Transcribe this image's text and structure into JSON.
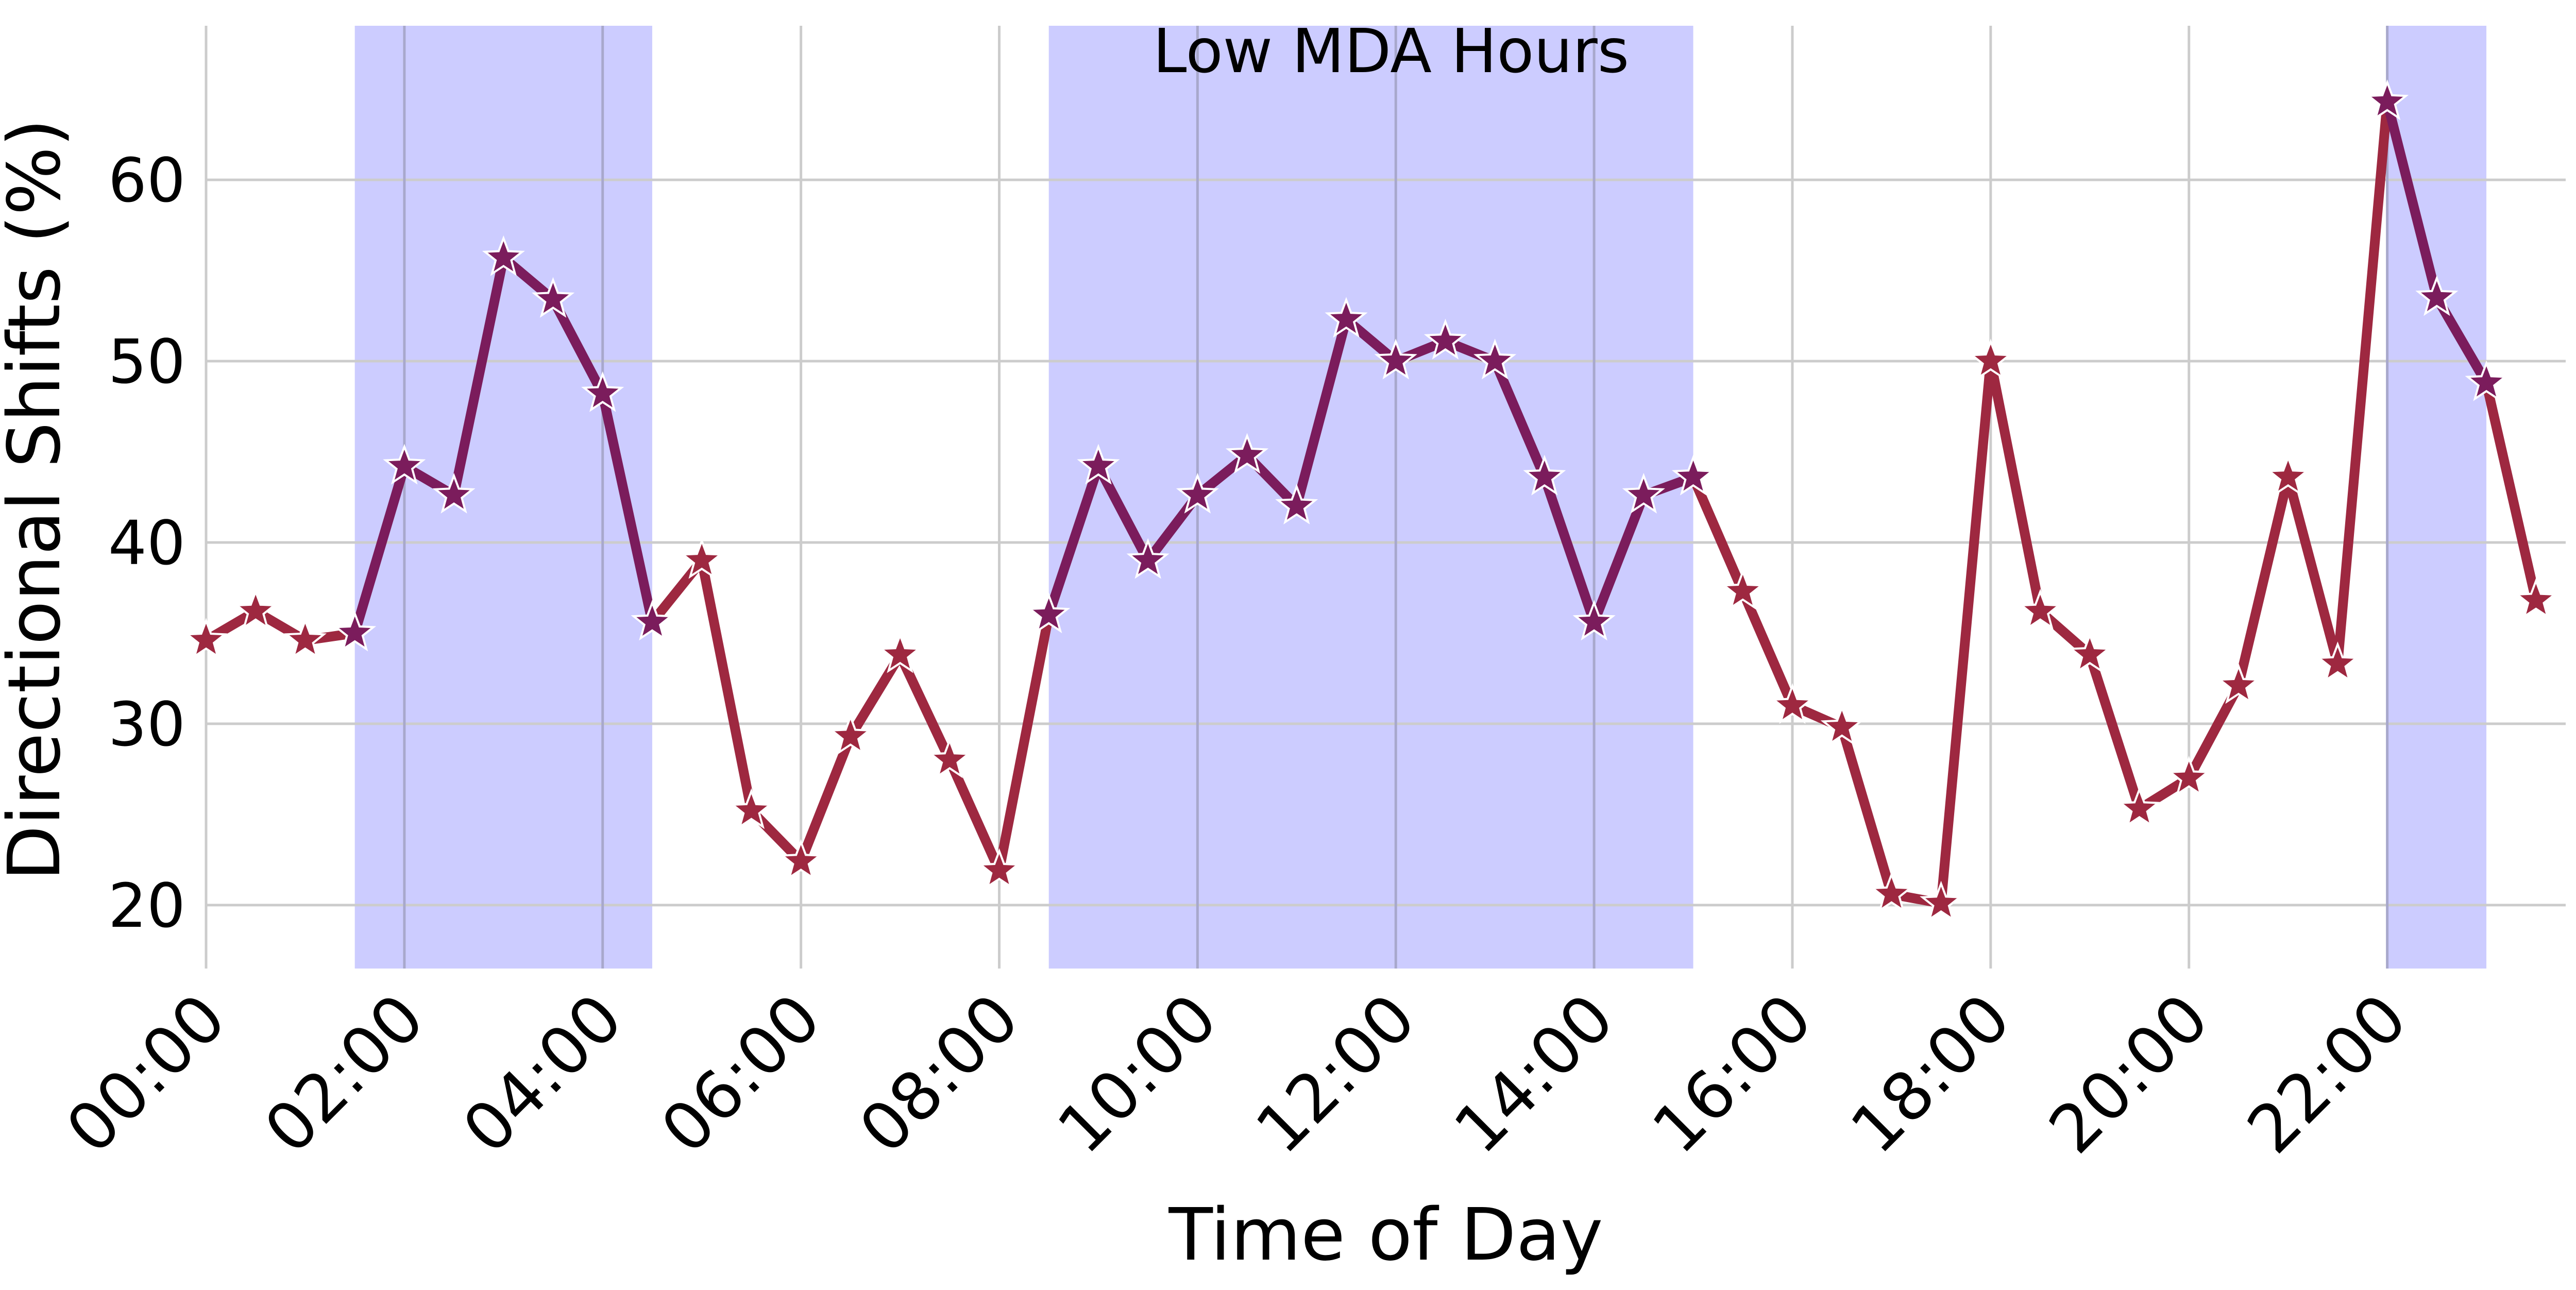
{
  "chart_data": {
    "type": "line",
    "title": "",
    "xlabel": "Time of Day",
    "ylabel": "Directional Shifts (%)",
    "annotation": "Low MDA Hours",
    "xlim": [
      0,
      23.8
    ],
    "ylim": [
      16.5,
      68.5
    ],
    "grid": true,
    "x_ticks": [
      0,
      2,
      4,
      6,
      8,
      10,
      12,
      14,
      16,
      18,
      20,
      22
    ],
    "x_tick_labels": [
      "00:00",
      "02:00",
      "04:00",
      "06:00",
      "08:00",
      "10:00",
      "12:00",
      "14:00",
      "16:00",
      "18:00",
      "20:00",
      "22:00"
    ],
    "y_ticks": [
      20,
      30,
      40,
      50,
      60
    ],
    "y_tick_labels": [
      "20",
      "30",
      "40",
      "50",
      "60"
    ],
    "shaded_ranges": [
      [
        1.5,
        4.5
      ],
      [
        8.5,
        15.0
      ],
      [
        22.0,
        23.0
      ]
    ],
    "x": [
      0,
      0.5,
      1,
      1.5,
      2,
      2.5,
      3,
      3.5,
      4,
      4.5,
      5,
      5.5,
      6,
      6.5,
      7,
      7.5,
      8,
      8.5,
      9,
      9.5,
      10,
      10.5,
      11,
      11.5,
      12,
      12.5,
      13,
      13.5,
      14,
      14.5,
      15,
      15.5,
      16,
      16.5,
      17,
      17.5,
      18,
      18.5,
      19,
      19.5,
      20,
      20.5,
      21,
      21.5,
      22,
      22.5,
      23,
      23.5
    ],
    "series": [
      {
        "values": [
          34.6,
          36.2,
          34.6,
          35.0,
          44.2,
          42.6,
          55.7,
          53.4,
          48.2,
          35.6,
          39.0,
          25.2,
          22.4,
          29.3,
          33.8,
          28.0,
          21.9,
          36.0,
          44.2,
          39.0,
          42.6,
          44.8,
          42.0,
          52.3,
          50.0,
          51.1,
          50.0,
          43.6,
          35.6,
          42.6,
          43.6,
          37.3,
          31.0,
          29.8,
          20.6,
          20.1,
          50.0,
          36.2,
          33.8,
          25.3,
          27.0,
          32.1,
          43.6,
          33.3,
          64.3,
          53.5,
          48.8,
          36.8
        ]
      }
    ],
    "colors": {
      "line_outside": "#9e2840",
      "line_inside": "#7b1c5c",
      "shade": "#ccccff",
      "grid": "#cccccc",
      "grid_in_shade": "#a8a8cc",
      "marker_edge": "#ffffff"
    }
  }
}
